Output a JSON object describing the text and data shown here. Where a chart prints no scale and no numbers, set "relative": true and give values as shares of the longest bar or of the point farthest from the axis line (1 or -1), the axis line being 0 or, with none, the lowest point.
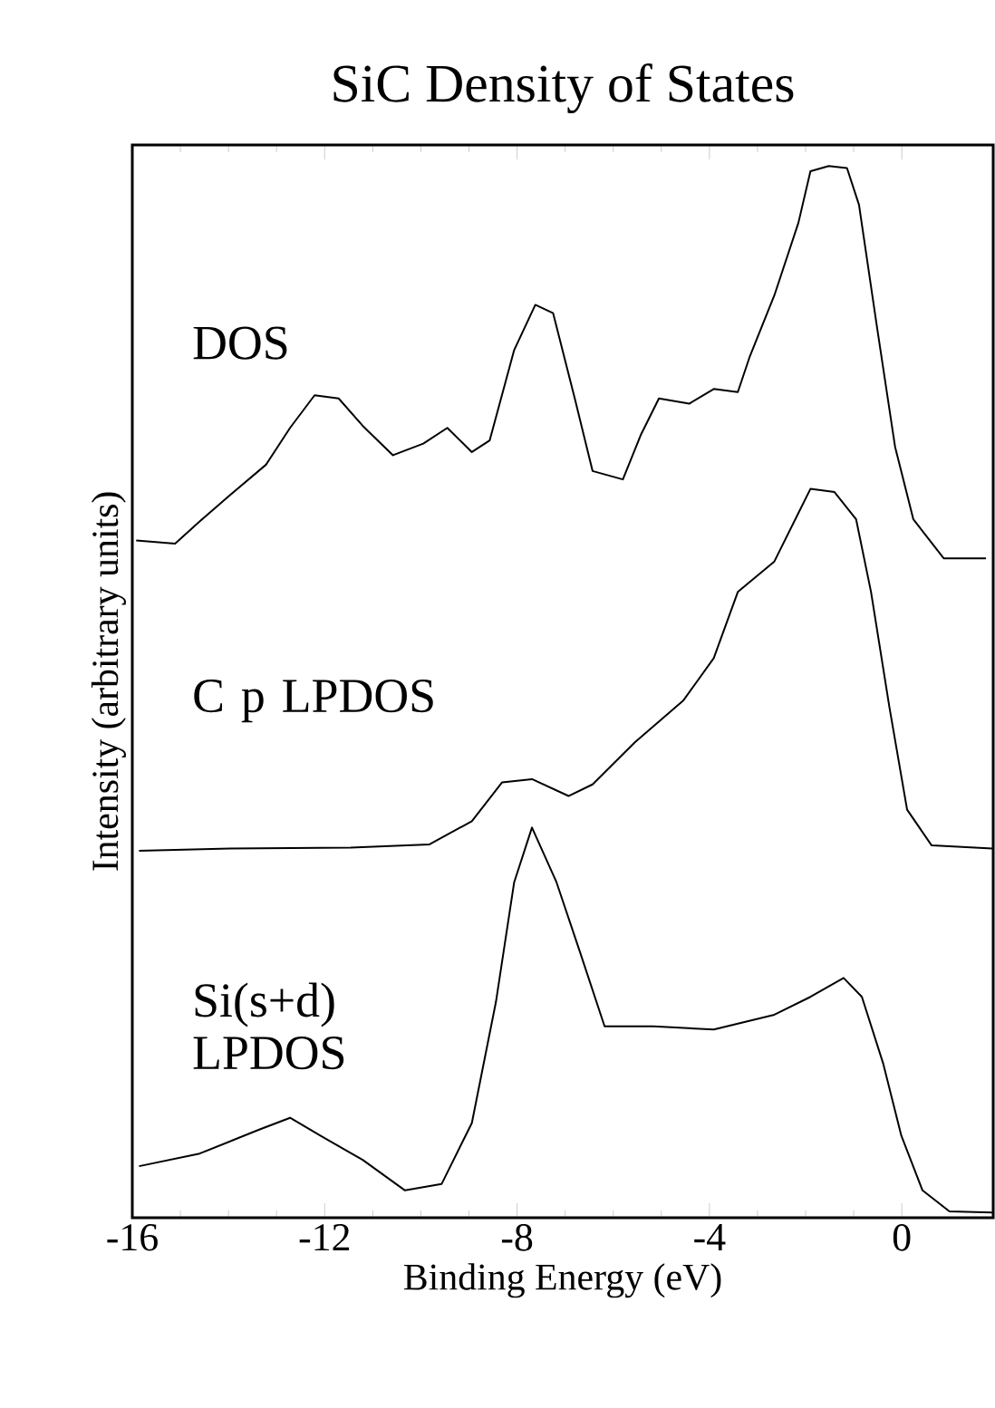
{
  "chart_data": {
    "type": "line",
    "title": "SiC Density of States",
    "xlabel": "Binding Energy (eV)",
    "ylabel": "Intensity (arbitrary units)",
    "relative": true,
    "xlim": [
      -16,
      1.9
    ],
    "xticks": [
      -16,
      -12,
      -8,
      -4,
      0
    ],
    "series": [
      {
        "name": "DOS",
        "color": "#000000",
        "x": [
          -15.92,
          -15.11,
          -14.6,
          -13.97,
          -13.22,
          -12.72,
          -12.21,
          -11.71,
          -11.21,
          -10.58,
          -9.95,
          -9.45,
          -8.94,
          -8.57,
          -8.06,
          -7.62,
          -7.25,
          -6.8,
          -6.43,
          -5.8,
          -5.42,
          -5.05,
          -4.42,
          -3.91,
          -3.41,
          -3.16,
          -2.65,
          -2.15,
          -1.9,
          -1.52,
          -1.14,
          -0.89,
          -0.52,
          -0.14,
          0.24,
          0.87,
          1.75
        ],
        "values": [
          0.644,
          0.641,
          0.662,
          0.687,
          0.716,
          0.751,
          0.782,
          0.779,
          0.753,
          0.725,
          0.736,
          0.751,
          0.728,
          0.739,
          0.825,
          0.868,
          0.86,
          0.779,
          0.71,
          0.702,
          0.745,
          0.779,
          0.774,
          0.788,
          0.785,
          0.819,
          0.877,
          0.946,
          0.995,
          1.0,
          0.998,
          0.963,
          0.848,
          0.733,
          0.664,
          0.627,
          0.627
        ]
      },
      {
        "name": "C p LPDOS",
        "color": "#000000",
        "x": [
          -15.86,
          -13.97,
          -11.46,
          -9.82,
          -8.94,
          -8.31,
          -7.69,
          -6.93,
          -6.43,
          -5.55,
          -4.54,
          -3.91,
          -3.41,
          -2.65,
          -2.15,
          -1.9,
          -1.4,
          -0.95,
          -0.64,
          -0.26,
          0.11,
          0.62,
          1.88
        ],
        "values": [
          0.349,
          0.351,
          0.352,
          0.355,
          0.377,
          0.414,
          0.417,
          0.401,
          0.412,
          0.452,
          0.492,
          0.532,
          0.595,
          0.624,
          0.67,
          0.693,
          0.69,
          0.664,
          0.595,
          0.486,
          0.388,
          0.354,
          0.351
        ]
      },
      {
        "name": "Si(s+d) LPDOS",
        "color": "#000000",
        "x": [
          -15.86,
          -14.6,
          -13.35,
          -12.72,
          -12.09,
          -11.21,
          -10.33,
          -9.57,
          -8.94,
          -8.44,
          -8.06,
          -7.69,
          -7.18,
          -6.68,
          -6.18,
          -5.17,
          -3.91,
          -2.65,
          -1.9,
          -1.21,
          -0.83,
          -0.39,
          -0.01,
          0.43,
          0.99,
          1.88
        ],
        "values": [
          0.049,
          0.061,
          0.084,
          0.095,
          0.078,
          0.055,
          0.026,
          0.032,
          0.09,
          0.205,
          0.319,
          0.371,
          0.319,
          0.251,
          0.182,
          0.182,
          0.179,
          0.193,
          0.21,
          0.228,
          0.21,
          0.147,
          0.078,
          0.026,
          0.006,
          0.005
        ]
      }
    ]
  }
}
